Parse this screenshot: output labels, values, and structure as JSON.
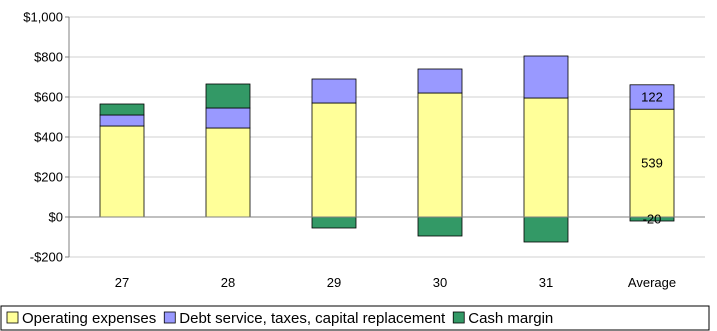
{
  "chart_data": {
    "type": "bar",
    "stacked": true,
    "categories": [
      "27",
      "28",
      "29",
      "30",
      "31",
      "Average"
    ],
    "series": [
      {
        "name": "Operating expenses",
        "color": "#ffff99",
        "values": [
          455,
          445,
          570,
          620,
          595,
          539
        ]
      },
      {
        "name": "Debt service, taxes, capital replacement",
        "color": "#9999ff",
        "values": [
          55,
          100,
          120,
          120,
          210,
          122
        ]
      },
      {
        "name": "Cash margin",
        "color": "#339966",
        "values": [
          55,
          120,
          -55,
          -95,
          -125,
          -20
        ]
      }
    ],
    "data_labels": [
      {
        "category": "Average",
        "series": "Operating expenses",
        "text": "539"
      },
      {
        "category": "Average",
        "series": "Debt service, taxes, capital replacement",
        "text": "122"
      },
      {
        "category": "Average",
        "series": "Cash margin",
        "text": "-20"
      }
    ],
    "y_ticks": [
      -200,
      0,
      200,
      400,
      600,
      800,
      1000
    ],
    "y_tick_labels": [
      "-$200",
      "$0",
      "$200",
      "$400",
      "$600",
      "$800",
      "$1,000"
    ],
    "ylim": [
      -200,
      1000
    ],
    "grid": "horizontal",
    "legend_position": "bottom",
    "title": "",
    "xlabel": "",
    "ylabel": ""
  }
}
